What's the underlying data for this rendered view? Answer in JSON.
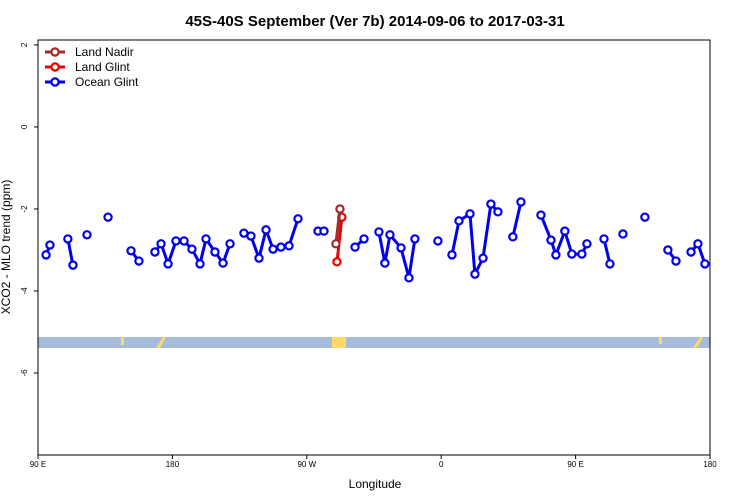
{
  "chart_data": {
    "type": "line",
    "title": "45S-40S September (Ver 7b)   2014-09-06 to 2017-03-31",
    "x_label": "Longitude",
    "y_label": "XCO2 - MLO trend (ppm)",
    "xlim": [
      90,
      540
    ],
    "ylim": [
      -8,
      2.12
    ],
    "xticks": [
      {
        "value": 90,
        "label": "90 E"
      },
      180,
      {
        "value": 270,
        "label": "90 W"
      },
      {
        "value": 360,
        "label": "0"
      },
      {
        "value": 450,
        "label": "90 E"
      },
      {
        "value": 540,
        "label": "180"
      }
    ],
    "yticks": [
      2,
      0,
      -2,
      -4,
      -6
    ],
    "legend": "top-left",
    "series": [
      {
        "name": "Land Nadir",
        "color": "#a52a2a",
        "x": [
          292.2,
          289.5
        ],
        "values": [
          -2.0,
          -2.85
        ]
      },
      {
        "name": "Land Glint",
        "color": "#ee0000",
        "x": [
          290.2,
          293.5
        ],
        "values": [
          -3.29,
          -2.2
        ]
      },
      {
        "name": "Ocean Glint",
        "color": "#0000ee",
        "x": [
          95.4,
          98,
          null,
          110,
          113.4,
          null,
          122.8,
          null,
          136.9,
          null,
          152.3,
          157.6,
          null,
          168.3,
          172.4,
          177.1,
          182.4,
          187.8,
          193.1,
          198.5,
          202.5,
          208.5,
          213.9,
          218.6,
          null,
          227.9,
          232.6,
          238,
          242.7,
          247.4,
          252.7,
          258.1,
          264.1,
          null,
          277.5,
          281.5,
          null,
          302.3,
          308.3,
          null,
          318.3,
          322.3,
          325.7,
          333.1,
          338.4,
          342.4,
          null,
          357.8,
          null,
          367.2,
          371.9,
          379.3,
          382.6,
          388,
          393.3,
          398,
          null,
          408,
          413.4,
          null,
          426.8,
          433.5,
          436.8,
          442.8,
          447.5,
          454.2,
          457.6,
          null,
          469,
          473,
          null,
          481.7,
          null,
          496.4,
          null,
          511.8,
          517.2,
          null,
          527.3,
          531.9,
          536.6
        ],
        "values": [
          -3.12,
          -2.88,
          null,
          -2.73,
          -3.37,
          null,
          -2.63,
          null,
          -2.2,
          null,
          -3.02,
          -3.27,
          null,
          -3.05,
          -2.85,
          -3.34,
          -2.78,
          -2.78,
          -2.98,
          -3.34,
          -2.73,
          -3.05,
          -3.32,
          -2.85,
          null,
          -2.59,
          -2.66,
          -3.2,
          -2.51,
          -2.98,
          -2.93,
          -2.9,
          -2.24,
          null,
          -2.54,
          -2.54,
          null,
          -2.93,
          -2.73,
          null,
          -2.56,
          -3.32,
          -2.63,
          -2.95,
          -3.68,
          -2.73,
          null,
          -2.78,
          null,
          -3.12,
          -2.29,
          -2.12,
          -3.59,
          -3.2,
          -1.88,
          -2.07,
          null,
          -2.68,
          -1.83,
          null,
          -2.15,
          -2.76,
          -3.12,
          -2.54,
          -3.1,
          -3.1,
          -2.85,
          null,
          -2.73,
          -3.34,
          null,
          -2.61,
          null,
          -2.2,
          null,
          -3.0,
          -3.27,
          null,
          -3.05,
          -2.85,
          -3.34
        ]
      }
    ]
  }
}
